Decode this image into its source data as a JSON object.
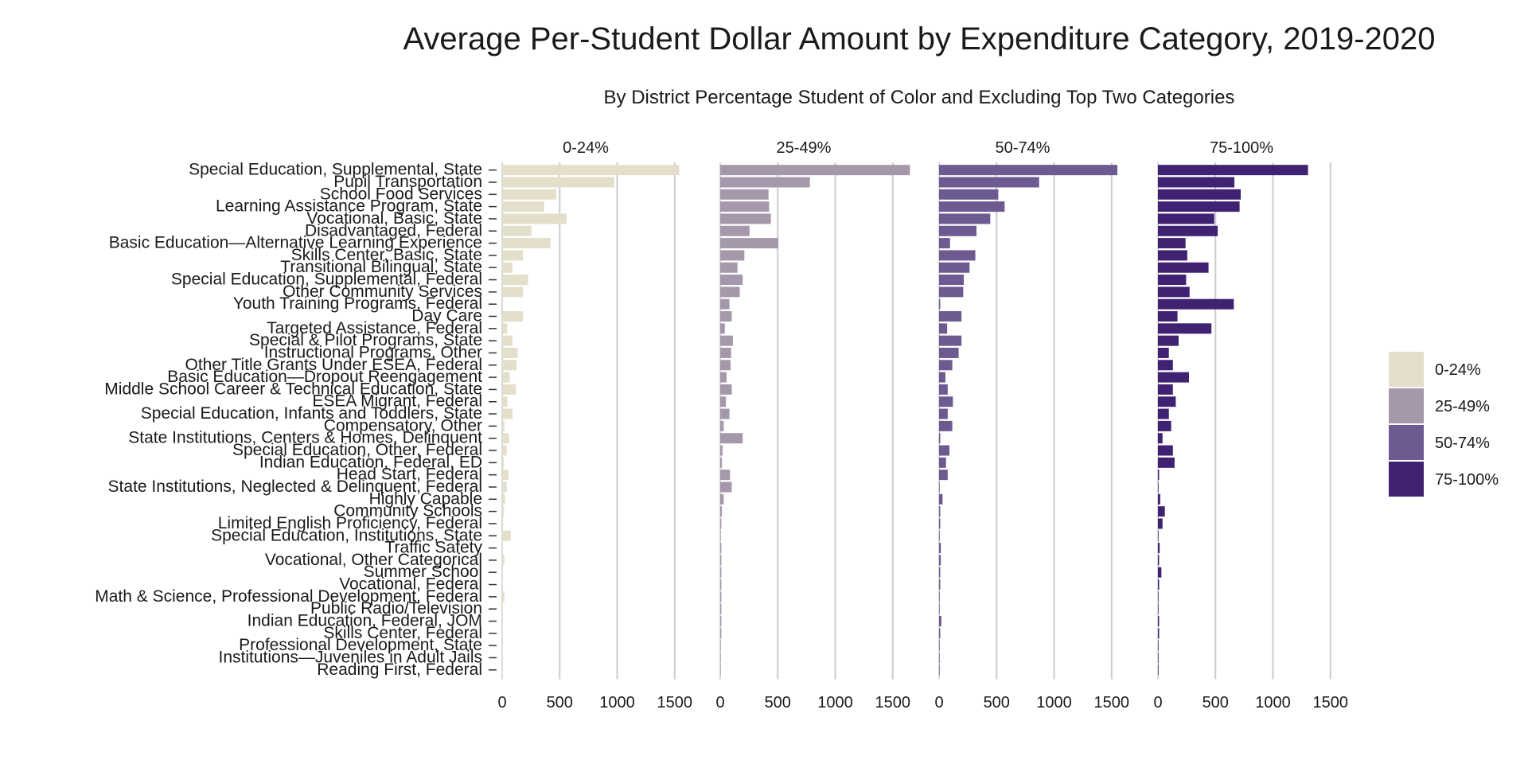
{
  "chart_data": {
    "type": "bar",
    "orientation": "horizontal",
    "title": "Average Per-Student Dollar Amount by Expenditure Category, 2019-2020",
    "subtitle": "By District Percentage Student of Color and Excluding Top Two Categories",
    "xlabel": "",
    "ylabel": "",
    "xlim": [
      0,
      1650
    ],
    "x_ticks": [
      "0",
      "500",
      "1000",
      "1500"
    ],
    "grid": "vertical",
    "legend_position": "right",
    "categories": [
      "Special Education, Supplemental, State",
      "Pupil Transportation",
      "School Food Services",
      "Learning Assistance Program, State",
      "Vocational, Basic, State",
      "Disadvantaged, Federal",
      "Basic Education—Alternative Learning Experience",
      "Skills Center, Basic, State",
      "Transitional Bilingual, State",
      "Special Education, Supplemental, Federal",
      "Other Community Services",
      "Youth Training Programs, Federal",
      "Day Care",
      "Targeted Assistance, Federal",
      "Special & Pilot Programs, State",
      "Instructional Programs, Other",
      "Other Title Grants Under ESEA, Federal",
      "Basic Education—Dropout Reengagement",
      "Middle School Career & Technical Education, State",
      "ESEA Migrant, Federal",
      "Special Education, Infants and Toddlers, State",
      "Compensatory, Other",
      "State Institutions, Centers & Homes, Delinquent",
      "Special Education, Other, Federal",
      "Indian Education, Federal, ED",
      "Head Start, Federal",
      "State Institutions, Neglected & Delinquent, Federal",
      "Highly Capable",
      "Community Schools",
      "Limited English Proficiency, Federal",
      "Special Education, Institutions, State",
      "Traffic Safety",
      "Vocational, Other Categorical",
      "Summer School",
      "Vocational, Federal",
      "Math & Science, Professional Development, Federal",
      "Public Radio/Television",
      "Indian Education, Federal, JOM",
      "Skills Center, Federal",
      "Professional Development, State",
      "Institutions—Juveniles in Adult Jails",
      "Reading First, Federal"
    ],
    "series": [
      {
        "name": "0-24%",
        "color": "#e3dfca",
        "values": [
          1540,
          975,
          470,
          365,
          560,
          255,
          420,
          180,
          90,
          225,
          180,
          0,
          180,
          45,
          90,
          135,
          125,
          65,
          120,
          45,
          90,
          20,
          60,
          40,
          15,
          55,
          40,
          25,
          15,
          8,
          75,
          5,
          20,
          5,
          5,
          20,
          5,
          5,
          5,
          3,
          3,
          3
        ]
      },
      {
        "name": "25-49%",
        "color": "#a698ab",
        "values": [
          1650,
          780,
          420,
          425,
          440,
          255,
          505,
          210,
          150,
          195,
          170,
          80,
          100,
          40,
          110,
          95,
          90,
          55,
          100,
          50,
          80,
          30,
          195,
          20,
          15,
          85,
          100,
          30,
          15,
          10,
          5,
          10,
          10,
          10,
          10,
          10,
          10,
          10,
          10,
          5,
          5,
          5
        ]
      },
      {
        "name": "50-74%",
        "color": "#6c5a90",
        "values": [
          1550,
          870,
          515,
          570,
          445,
          325,
          95,
          315,
          265,
          215,
          210,
          10,
          195,
          70,
          195,
          170,
          115,
          55,
          75,
          120,
          75,
          115,
          10,
          90,
          60,
          75,
          5,
          30,
          10,
          10,
          5,
          15,
          15,
          10,
          10,
          5,
          5,
          20,
          10,
          5,
          5,
          5
        ]
      },
      {
        "name": "75-100%",
        "color": "#3f2272",
        "values": [
          1305,
          665,
          720,
          710,
          490,
          520,
          240,
          255,
          440,
          245,
          275,
          660,
          170,
          465,
          180,
          95,
          130,
          270,
          130,
          155,
          95,
          115,
          40,
          130,
          145,
          10,
          5,
          20,
          60,
          40,
          5,
          15,
          10,
          30,
          10,
          5,
          5,
          10,
          10,
          5,
          5,
          5
        ]
      }
    ]
  },
  "legend": {
    "items": [
      {
        "label": "0-24%",
        "color": "#e3dfca"
      },
      {
        "label": "25-49%",
        "color": "#a698ab"
      },
      {
        "label": "50-74%",
        "color": "#6c5a90"
      },
      {
        "label": "75-100%",
        "color": "#3f2272"
      }
    ]
  }
}
